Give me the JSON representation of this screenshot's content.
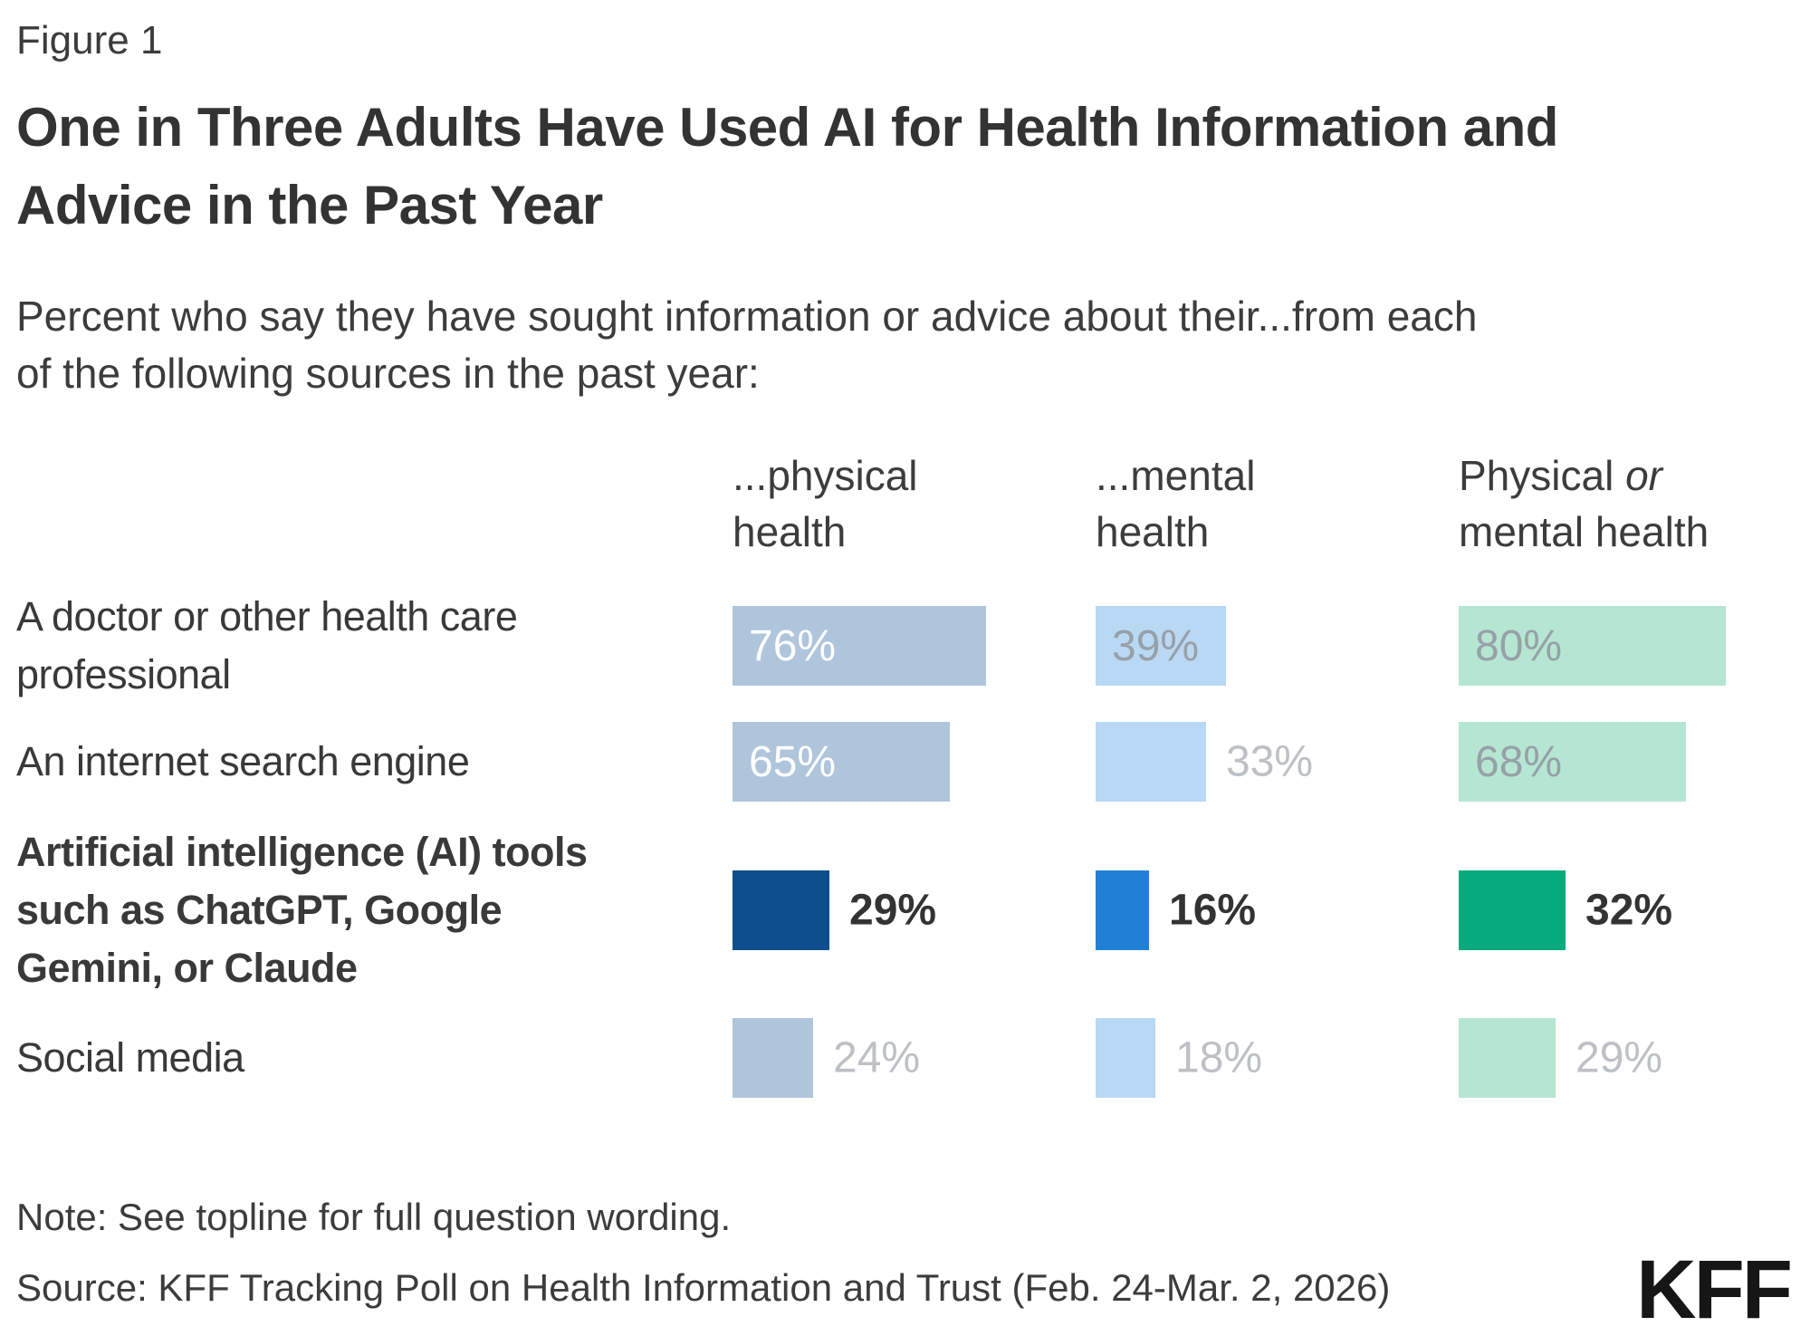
{
  "figure_label": "Figure 1",
  "title": {
    "lines": [
      "One in Three Adults Have Used AI for Health Information and",
      "Advice in the Past Year"
    ]
  },
  "subtitle": {
    "lines": [
      "Percent who say they have sought information or advice about their...from each",
      "of the following sources in the past year:"
    ]
  },
  "footer": {
    "note": "Note: See topline for full question wording.",
    "source": "Source: KFF Tracking Poll on Health Information and Trust (Feb. 24-Mar. 2, 2026)",
    "logo": "KFF"
  },
  "chart_data": {
    "type": "bar",
    "orientation": "horizontal",
    "unit": "percent",
    "value_axis_hidden": true,
    "columns": [
      {
        "id": "physical-health",
        "header_line1": "...physical",
        "header_line1_italic": "",
        "header_line2": "health"
      },
      {
        "id": "mental-health",
        "header_line1": "...mental",
        "header_line1_italic": "",
        "header_line2": "health"
      },
      {
        "id": "physical-or-mental-health",
        "header_line1": "Physical ",
        "header_line1_italic": "or",
        "header_line2": "mental health"
      }
    ],
    "rows": [
      {
        "id": "doctor",
        "label_lines": [
          "A doctor or other health care",
          "professional"
        ],
        "highlight": false,
        "cells": [
          {
            "value": 76,
            "label": "76%",
            "placement": "inside",
            "text_style": "white"
          },
          {
            "value": 39,
            "label": "39%",
            "placement": "inside",
            "text_style": "muted"
          },
          {
            "value": 80,
            "label": "80%",
            "placement": "inside",
            "text_style": "muted"
          }
        ]
      },
      {
        "id": "search-engine",
        "label_lines": [
          "An internet search engine"
        ],
        "highlight": false,
        "cells": [
          {
            "value": 65,
            "label": "65%",
            "placement": "inside",
            "text_style": "white"
          },
          {
            "value": 33,
            "label": "33%",
            "placement": "outside",
            "text_style": "light"
          },
          {
            "value": 68,
            "label": "68%",
            "placement": "inside",
            "text_style": "muted"
          }
        ]
      },
      {
        "id": "ai-tools",
        "label_lines": [
          "Artificial intelligence (AI) tools",
          "such as ChatGPT, Google",
          "Gemini, or Claude"
        ],
        "highlight": true,
        "cells": [
          {
            "value": 29,
            "label": "29%",
            "placement": "outside",
            "text_style": "dark"
          },
          {
            "value": 16,
            "label": "16%",
            "placement": "outside",
            "text_style": "dark"
          },
          {
            "value": 32,
            "label": "32%",
            "placement": "outside",
            "text_style": "dark"
          }
        ]
      },
      {
        "id": "social-media",
        "label_lines": [
          "Social media"
        ],
        "highlight": false,
        "cells": [
          {
            "value": 24,
            "label": "24%",
            "placement": "outside",
            "text_style": "light"
          },
          {
            "value": 18,
            "label": "18%",
            "placement": "outside",
            "text_style": "light"
          },
          {
            "value": 29,
            "label": "29%",
            "placement": "outside",
            "text_style": "light"
          }
        ]
      }
    ],
    "colors": {
      "column_light": [
        "#AFC5DC",
        "#B9D8F3",
        "#B5E6D1"
      ],
      "column_highlight": [
        "#0E4E8D",
        "#2280D4",
        "#05AB7D"
      ],
      "value_white": "#FFFFFF",
      "value_muted": "#97A0A8",
      "value_light": "#BDC1C5",
      "value_dark": "#333333"
    }
  }
}
